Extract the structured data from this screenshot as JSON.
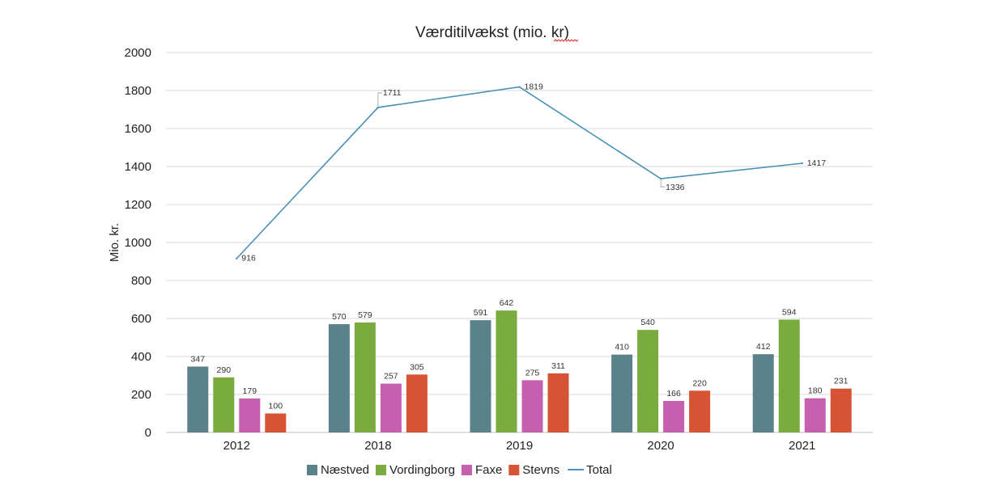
{
  "chart_data": {
    "type": "bar",
    "title": "Værditilvækst (mio. kr)",
    "xlabel": "",
    "ylabel": "Mio. kr.",
    "ylim": [
      0,
      2000
    ],
    "yticks": [
      0,
      200,
      400,
      600,
      800,
      1000,
      1200,
      1400,
      1600,
      1800,
      2000
    ],
    "grid": true,
    "legend_position": "bottom",
    "categories": [
      "2012",
      "2018",
      "2019",
      "2020",
      "2021"
    ],
    "series": [
      {
        "name": "Næstved",
        "kind": "bar",
        "color": "#5b818b",
        "values": [
          347,
          570,
          591,
          410,
          412
        ]
      },
      {
        "name": "Vordingborg",
        "kind": "bar",
        "color": "#7aab3f",
        "values": [
          290,
          579,
          642,
          540,
          594
        ]
      },
      {
        "name": "Faxe",
        "kind": "bar",
        "color": "#c55fae",
        "values": [
          179,
          257,
          275,
          166,
          180
        ]
      },
      {
        "name": "Stevns",
        "kind": "bar",
        "color": "#d65434",
        "values": [
          100,
          305,
          311,
          220,
          231
        ]
      },
      {
        "name": "Total",
        "kind": "line",
        "color": "#4a90b8",
        "values": [
          916,
          1711,
          1819,
          1336,
          1417
        ]
      }
    ]
  }
}
